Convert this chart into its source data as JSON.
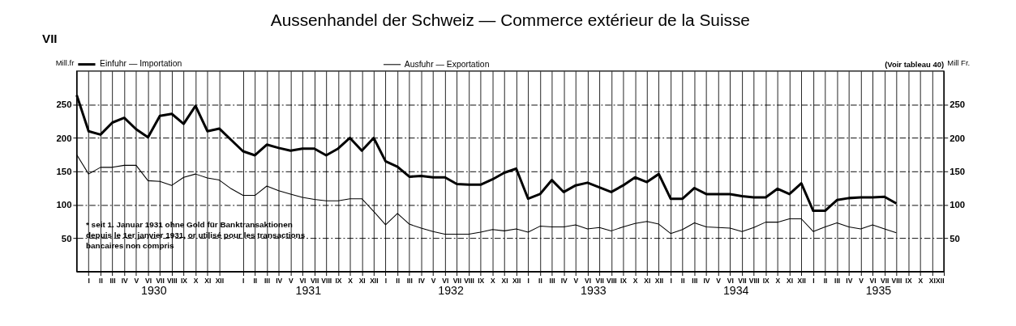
{
  "chart_data": {
    "type": "line",
    "title": "Aussenhandel der Schweiz — Commerce extérieur de la Suisse",
    "ylabel": "Mill.fr",
    "y2label": "Mill Fr.",
    "categories": [
      null,
      "I",
      "II",
      "III",
      "IV",
      "V",
      "VI",
      "VII",
      "VIII",
      "IX",
      "X",
      "XI",
      "XII",
      null,
      "I",
      "II",
      "III",
      "IV",
      "V",
      "VI",
      "VII",
      "VIII",
      "IX",
      "X",
      "XI",
      "XII",
      "I",
      "II",
      "III",
      "IV",
      "V",
      "VI",
      "VII",
      "VIII",
      "IX",
      "X",
      "XI",
      "XII",
      "I",
      "II",
      "III",
      "IV",
      "V",
      "VI",
      "VII",
      "VIII",
      "IX",
      "X",
      "XI",
      "XII",
      "I",
      "II",
      "III",
      "IV",
      "V",
      "VI",
      "VII",
      "VIII",
      "IX",
      "X",
      "XI",
      "XII",
      "I",
      "II",
      "III",
      "IV",
      "V",
      "VI",
      "VII",
      "VIII",
      "IX",
      "X",
      "XI",
      "XII"
    ],
    "series": [
      {
        "name": "Einfuhr — Importation",
        "color": "#000000",
        "values": [
          264,
          210,
          205,
          223,
          230,
          213,
          201,
          233,
          236,
          221,
          248,
          210,
          214,
          197,
          180,
          174,
          190,
          185,
          181,
          184,
          184,
          174,
          184,
          200,
          181,
          200,
          165,
          157,
          142,
          143,
          141,
          141,
          131,
          130,
          130,
          138,
          148,
          154,
          109,
          116,
          137,
          119,
          129,
          133,
          126,
          119,
          129,
          141,
          134,
          146,
          109,
          109,
          125,
          116,
          116,
          116,
          113,
          111,
          111,
          124,
          116,
          132,
          91,
          91,
          107,
          110,
          111,
          111,
          112,
          102,
          null,
          null,
          null,
          null
        ]
      },
      {
        "name": "Ausfuhr — Exportation",
        "color": "#000000",
        "values": [
          175,
          146,
          156,
          156,
          159,
          159,
          136,
          135,
          129,
          141,
          146,
          140,
          137,
          124,
          114,
          114,
          128,
          121,
          116,
          111,
          108,
          106,
          106,
          109,
          109,
          90,
          70,
          87,
          71,
          65,
          60,
          56,
          56,
          56,
          59,
          63,
          61,
          64,
          59,
          68,
          67,
          67,
          70,
          64,
          66,
          61,
          67,
          72,
          75,
          71,
          57,
          63,
          73,
          67,
          66,
          65,
          60,
          66,
          74,
          74,
          79,
          79,
          60,
          67,
          73,
          67,
          64,
          70,
          64,
          58,
          null,
          null,
          null,
          null
        ]
      }
    ],
    "ylim": [
      0,
      300
    ],
    "yticks": [
      50,
      100,
      150,
      200,
      250
    ],
    "y2lim": [
      0,
      300
    ],
    "y2ticks": [
      50,
      100,
      150,
      200,
      250
    ],
    "grid": true,
    "legend": "top",
    "line_style": "solid",
    "marker": "none",
    "annotations": [
      "VII",
      "(Voir tableau 40)",
      "* seit 1. Januar 1931 ohne Gold für Banktransaktionen\ndepuis le 1er janvier 1931, or utilisé pour les transactions\nbancaires non compris",
      "1930",
      "1931",
      "1932",
      "1933",
      "1934",
      "1935"
    ]
  }
}
